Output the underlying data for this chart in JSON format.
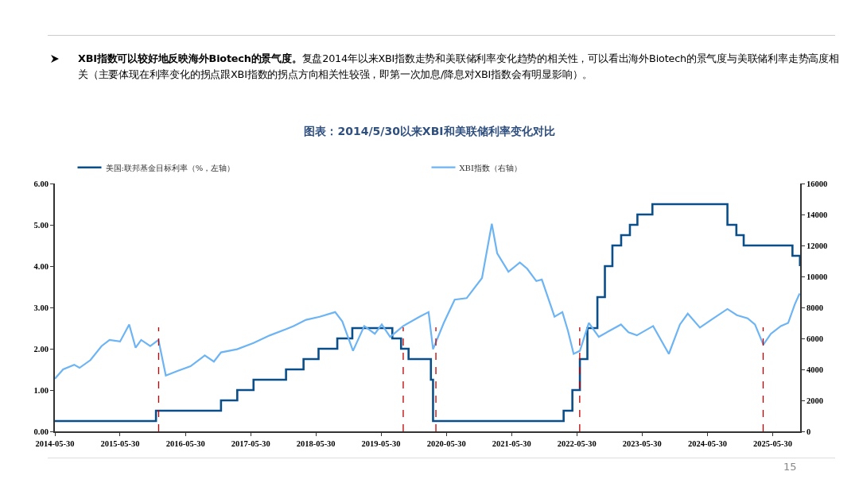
{
  "chart_data": {
    "type": "line",
    "title": "图表：2014/5/30以来XBI和美联储利率变化对比",
    "annotations": [
      "XBI指数可以较好地反映海外Biotech的景气度。",
      "复盘2014年以来XBI指数走势和美联储利率变化趋势的相关性，可以看出海外Biotech的景气度与美联储利率走势高度相关（主要体现在利率变化的拐点跟XBI指数的拐点方向相关性较强，即第一次加息/降息对XBI指数会有明显影响）。",
      "15"
    ],
    "series": [
      {
        "name": "美国:联邦基金目标利率（%，左轴）",
        "type": "step",
        "color": "#0b4f8a",
        "x": [
          "2014-05-30",
          "2015-12-17",
          "2016-12-15",
          "2017-03-16",
          "2017-06-15",
          "2017-12-14",
          "2018-03-22",
          "2018-06-14",
          "2018-09-27",
          "2018-12-20",
          "2019-08-01",
          "2019-09-19",
          "2019-10-31",
          "2020-03-04",
          "2020-03-16",
          "2022-03-17",
          "2022-05-05",
          "2022-06-16",
          "2022-07-28",
          "2022-09-22",
          "2022-11-03",
          "2022-12-15",
          "2023-02-02",
          "2023-03-23",
          "2023-05-04",
          "2023-07-27",
          "2024-09-19",
          "2024-11-08",
          "2024-12-19",
          "2025-09-18",
          "2025-10-30"
        ],
        "values": [
          0.25,
          0.5,
          0.75,
          1.0,
          1.25,
          1.5,
          1.75,
          2.0,
          2.25,
          2.5,
          2.25,
          2.0,
          1.75,
          1.25,
          0.25,
          0.5,
          1.0,
          1.75,
          2.5,
          3.25,
          4.0,
          4.5,
          4.75,
          5.0,
          5.25,
          5.5,
          5.0,
          4.75,
          4.5,
          4.25,
          4.0
        ]
      },
      {
        "name": "XBI指数（右轴）",
        "axis": "y2",
        "color": "#6cb4f4",
        "x": [
          "2014-05-30",
          "2014-07-15",
          "2014-09-15",
          "2014-10-15",
          "2014-12-15",
          "2015-02-15",
          "2015-04-01",
          "2015-05-30",
          "2015-07-20",
          "2015-08-25",
          "2015-09-25",
          "2015-11-15",
          "2015-12-31",
          "2016-02-10",
          "2016-04-15",
          "2016-06-27",
          "2016-09-15",
          "2016-11-05",
          "2016-12-15",
          "2017-03-15",
          "2017-06-15",
          "2017-09-15",
          "2017-12-15",
          "2018-01-25",
          "2018-04-05",
          "2018-06-20",
          "2018-09-15",
          "2018-10-25",
          "2018-12-24",
          "2019-02-25",
          "2019-04-25",
          "2019-06-03",
          "2019-07-20",
          "2019-10-01",
          "2019-12-31",
          "2020-02-20",
          "2020-03-16",
          "2020-05-15",
          "2020-07-15",
          "2020-09-20",
          "2020-12-15",
          "2021-02-08",
          "2021-03-10",
          "2021-05-12",
          "2021-07-15",
          "2021-08-25",
          "2021-10-15",
          "2021-11-15",
          "2022-01-25",
          "2022-03-10",
          "2022-04-10",
          "2022-05-12",
          "2022-06-16",
          "2022-08-05",
          "2022-09-30",
          "2022-11-30",
          "2023-02-01",
          "2023-03-15",
          "2023-05-01",
          "2023-07-31",
          "2023-10-27",
          "2023-12-28",
          "2024-02-10",
          "2024-04-18",
          "2024-06-20",
          "2024-09-19",
          "2024-11-11",
          "2025-01-10",
          "2025-02-20",
          "2025-04-08",
          "2025-05-20",
          "2025-07-15",
          "2025-08-25",
          "2025-10-01",
          "2025-10-28"
        ],
        "values": [
          3400,
          4000,
          4300,
          4100,
          4600,
          5500,
          5900,
          5800,
          6900,
          5400,
          5900,
          5500,
          5900,
          3600,
          3900,
          4200,
          4900,
          4500,
          5100,
          5300,
          5700,
          6200,
          6600,
          6800,
          7200,
          7400,
          7700,
          7100,
          5200,
          6800,
          6300,
          6900,
          6100,
          6800,
          7400,
          7700,
          5300,
          7000,
          8500,
          8600,
          9900,
          13400,
          11500,
          10300,
          10900,
          10500,
          9700,
          9800,
          7400,
          7700,
          6500,
          5000,
          5200,
          7000,
          6100,
          6500,
          6900,
          6400,
          6200,
          6800,
          5000,
          6900,
          7600,
          6700,
          7200,
          7900,
          7500,
          7300,
          6900,
          5600,
          6300,
          6800,
          7000,
          8200,
          8900
        ]
      }
    ],
    "xlim": [
      "2014-05-30",
      "2025-10-31"
    ],
    "xticks": [
      {
        "value": "2014-05-30",
        "label": "2014-05-30"
      },
      {
        "value": "2015-05-30",
        "label": "2015-05-30"
      },
      {
        "value": "2016-05-30",
        "label": "2016-05-30"
      },
      {
        "value": "2017-05-30",
        "label": "2017-05-30"
      },
      {
        "value": "2018-05-30",
        "label": "2018-05-30"
      },
      {
        "value": "2019-05-30",
        "label": "2019-05-30"
      },
      {
        "value": "2020-05-30",
        "label": "2020-05-30"
      },
      {
        "value": "2021-05-30",
        "label": "2021-05-30"
      },
      {
        "value": "2022-05-30",
        "label": "2022-05-30"
      },
      {
        "value": "2023-05-30",
        "label": "2023-05-30"
      },
      {
        "value": "2024-05-30",
        "label": "2024-05-30"
      },
      {
        "value": "2025-05-30",
        "label": "2025-05-30"
      }
    ],
    "ylim": [
      0,
      6
    ],
    "yticks": [
      {
        "value": 0,
        "label": "0.00"
      },
      {
        "value": 1,
        "label": "1.00"
      },
      {
        "value": 2,
        "label": "2.00"
      },
      {
        "value": 3,
        "label": "3.00"
      },
      {
        "value": 4,
        "label": "4.00"
      },
      {
        "value": 5,
        "label": "5.00"
      },
      {
        "value": 6,
        "label": "6.00"
      }
    ],
    "y2lim": [
      0,
      16000
    ],
    "y2ticks": [
      0,
      2000,
      4000,
      6000,
      8000,
      10000,
      12000,
      14000,
      16000
    ],
    "ref_lines": [
      {
        "axis": "x",
        "value": "2016-01-01",
        "color": "#c00000",
        "line_style": "dashed"
      },
      {
        "axis": "x",
        "value": "2019-10-01",
        "color": "#c00000",
        "line_style": "dashed"
      },
      {
        "axis": "x",
        "value": "2020-04-01",
        "color": "#c00000",
        "line_style": "dashed"
      },
      {
        "axis": "x",
        "value": "2022-06-15",
        "color": "#c00000",
        "line_style": "dashed"
      },
      {
        "axis": "x",
        "value": "2025-04-07",
        "color": "#c00000",
        "line_style": "dashed"
      }
    ],
    "grid": false,
    "legend": "top",
    "marker": "none"
  }
}
